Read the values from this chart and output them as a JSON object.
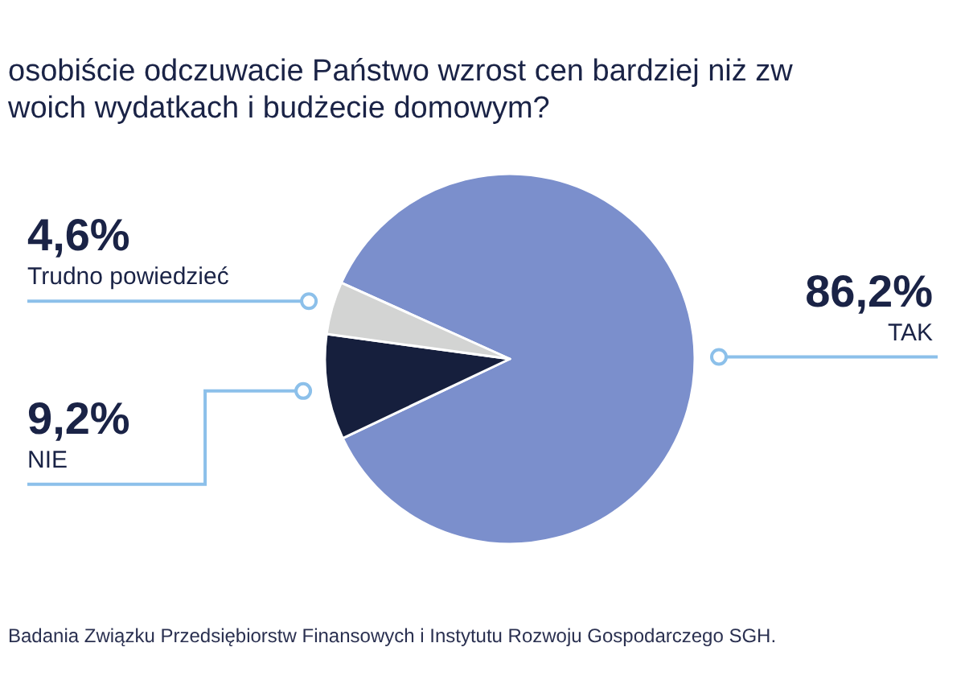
{
  "chart_data": {
    "type": "pie",
    "title": "osobiście odczuwacie Państwo wzrost cen bardziej niż zw\nwoich wydatkach i budżecie domowym?",
    "categories": [
      "TAK",
      "NIE",
      "Trudno powiedzieć"
    ],
    "values": [
      86.2,
      9.2,
      4.6
    ],
    "colors": [
      "#7b8fcc",
      "#161f3d",
      "#d3d4d3"
    ],
    "value_labels": [
      "86,2%",
      "9,2%",
      "4,6%"
    ],
    "annotations": [
      "Badania Związku Przedsiębiorstw Finansowych i Instytutu Rozwoju Gospodarczego SGH."
    ]
  }
}
